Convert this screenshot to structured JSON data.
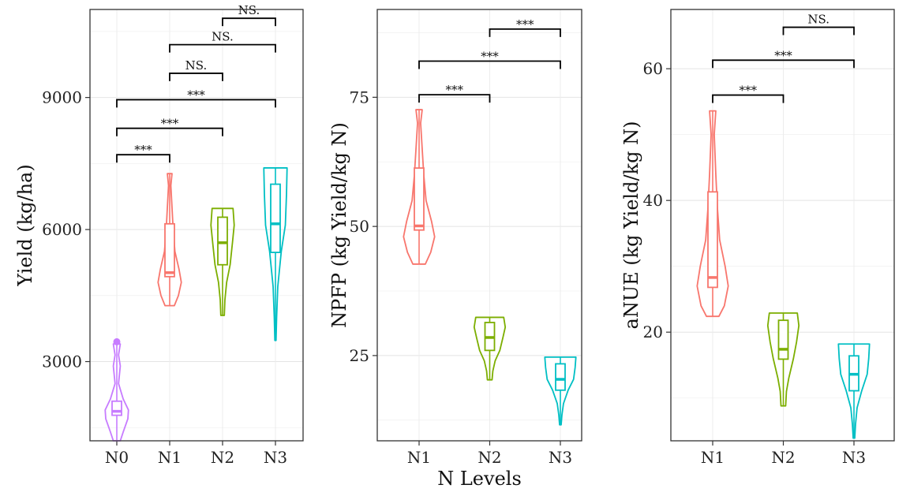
{
  "chart_data": [
    {
      "type": "violin",
      "ylabel": "Yield (kg/ha)",
      "ylim": [
        1200,
        11000
      ],
      "yticks": [
        3000,
        6000,
        9000
      ],
      "grid": true,
      "categories": [
        "N0",
        "N1",
        "N2",
        "N3"
      ],
      "colors": [
        "#C77CFF",
        "#F8766D",
        "#7CAE00",
        "#00BFC4"
      ],
      "series": [
        {
          "category": "N0",
          "min": 1200,
          "q1": 1780,
          "median": 1870,
          "q3": 2100,
          "max": 3450,
          "outliers": [
            3450
          ],
          "profile": [
            [
              1200,
              0.3
            ],
            [
              1400,
              0.55
            ],
            [
              1700,
              0.95
            ],
            [
              1900,
              1.0
            ],
            [
              2150,
              0.55
            ],
            [
              2500,
              0.15
            ],
            [
              2900,
              0.3
            ],
            [
              3150,
              0.15
            ],
            [
              3400,
              0.3
            ]
          ]
        },
        {
          "category": "N1",
          "min": 4270,
          "q1": 4930,
          "median": 5020,
          "q3": 6130,
          "max": 7270,
          "outliers": [],
          "profile": [
            [
              4270,
              0.4
            ],
            [
              4500,
              0.75
            ],
            [
              4800,
              1.0
            ],
            [
              5100,
              0.8
            ],
            [
              5500,
              0.45
            ],
            [
              6000,
              0.3
            ],
            [
              6500,
              0.2
            ],
            [
              7000,
              0.1
            ],
            [
              7270,
              0.2
            ]
          ]
        },
        {
          "category": "N2",
          "min": 4050,
          "q1": 5200,
          "median": 5700,
          "q3": 6280,
          "max": 6480,
          "outliers": [],
          "profile": [
            [
              4050,
              0.15
            ],
            [
              4400,
              0.2
            ],
            [
              4800,
              0.35
            ],
            [
              5200,
              0.65
            ],
            [
              5700,
              0.85
            ],
            [
              6100,
              1.0
            ],
            [
              6480,
              0.9
            ]
          ]
        },
        {
          "category": "N3",
          "min": 3480,
          "q1": 5480,
          "median": 6130,
          "q3": 7030,
          "max": 7400,
          "outliers": [],
          "profile": [
            [
              3480,
              0.05
            ],
            [
              4000,
              0.1
            ],
            [
              4700,
              0.2
            ],
            [
              5500,
              0.5
            ],
            [
              6100,
              0.85
            ],
            [
              6800,
              0.95
            ],
            [
              7400,
              1.0
            ]
          ]
        }
      ],
      "comparisons": [
        {
          "from": "N0",
          "to": "N1",
          "y": 7700,
          "label": "***"
        },
        {
          "from": "N0",
          "to": "N2",
          "y": 8300,
          "label": "***"
        },
        {
          "from": "N0",
          "to": "N3",
          "y": 8950,
          "label": "***"
        },
        {
          "from": "N1",
          "to": "N2",
          "y": 9550,
          "label": "NS."
        },
        {
          "from": "N1",
          "to": "N3",
          "y": 10200,
          "label": "NS."
        },
        {
          "from": "N2",
          "to": "N3",
          "y": 10800,
          "label": "NS."
        }
      ]
    },
    {
      "type": "violin",
      "ylabel": "NPFP (kg Yield/kg N)",
      "xlabel": "N Levels",
      "ylim": [
        8.5,
        92
      ],
      "yticks": [
        25,
        50,
        75
      ],
      "grid": true,
      "categories": [
        "N1",
        "N2",
        "N3"
      ],
      "colors": [
        "#F8766D",
        "#7CAE00",
        "#00BFC4"
      ],
      "series": [
        {
          "category": "N1",
          "min": 42.7,
          "q1": 49.3,
          "median": 50.1,
          "q3": 61.3,
          "max": 72.6,
          "outliers": [],
          "profile": [
            [
              42.7,
              0.4
            ],
            [
              45,
              0.75
            ],
            [
              48,
              1.0
            ],
            [
              51,
              0.8
            ],
            [
              55,
              0.45
            ],
            [
              60,
              0.3
            ],
            [
              65,
              0.2
            ],
            [
              70,
              0.1
            ],
            [
              72.6,
              0.2
            ]
          ]
        },
        {
          "category": "N2",
          "min": 20.3,
          "q1": 26.0,
          "median": 28.5,
          "q3": 31.4,
          "max": 32.4,
          "outliers": [],
          "profile": [
            [
              20.3,
              0.15
            ],
            [
              22,
              0.2
            ],
            [
              24,
              0.35
            ],
            [
              26,
              0.65
            ],
            [
              28.5,
              0.85
            ],
            [
              30.5,
              1.0
            ],
            [
              32.4,
              0.9
            ]
          ]
        },
        {
          "category": "N3",
          "min": 11.6,
          "q1": 18.3,
          "median": 20.4,
          "q3": 23.4,
          "max": 24.7,
          "outliers": [],
          "profile": [
            [
              11.6,
              0.05
            ],
            [
              13.5,
              0.1
            ],
            [
              15.7,
              0.2
            ],
            [
              18.3,
              0.5
            ],
            [
              20.4,
              0.85
            ],
            [
              22.7,
              0.95
            ],
            [
              24.7,
              1.0
            ]
          ]
        }
      ],
      "comparisons": [
        {
          "from": "N1",
          "to": "N2",
          "y": 75.5,
          "label": "***"
        },
        {
          "from": "N1",
          "to": "N3",
          "y": 82.0,
          "label": "***"
        },
        {
          "from": "N2",
          "to": "N3",
          "y": 88.2,
          "label": "***"
        }
      ]
    },
    {
      "type": "violin",
      "ylabel": "aNUE (kg Yield/kg N)",
      "ylim": [
        3.5,
        69
      ],
      "yticks": [
        20,
        40,
        60
      ],
      "grid": true,
      "categories": [
        "N1",
        "N2",
        "N3"
      ],
      "colors": [
        "#F8766D",
        "#7CAE00",
        "#00BFC4"
      ],
      "series": [
        {
          "category": "N1",
          "min": 22.4,
          "q1": 26.8,
          "median": 28.3,
          "q3": 41.3,
          "max": 53.6,
          "outliers": [],
          "profile": [
            [
              22.4,
              0.4
            ],
            [
              24,
              0.75
            ],
            [
              27,
              1.0
            ],
            [
              30,
              0.8
            ],
            [
              34,
              0.45
            ],
            [
              39,
              0.3
            ],
            [
              44,
              0.2
            ],
            [
              50,
              0.1
            ],
            [
              53.6,
              0.2
            ]
          ]
        },
        {
          "category": "N2",
          "min": 8.8,
          "q1": 15.9,
          "median": 17.4,
          "q3": 21.8,
          "max": 22.9,
          "outliers": [],
          "profile": [
            [
              8.8,
              0.15
            ],
            [
              11,
              0.2
            ],
            [
              13,
              0.35
            ],
            [
              16,
              0.65
            ],
            [
              18.5,
              0.85
            ],
            [
              21,
              1.0
            ],
            [
              22.9,
              0.9
            ]
          ]
        },
        {
          "category": "N3",
          "min": 3.9,
          "q1": 11.1,
          "median": 13.6,
          "q3": 16.4,
          "max": 18.2,
          "outliers": [],
          "profile": [
            [
              3.9,
              0.05
            ],
            [
              6,
              0.1
            ],
            [
              8.5,
              0.2
            ],
            [
              11.1,
              0.5
            ],
            [
              13.6,
              0.85
            ],
            [
              16,
              0.95
            ],
            [
              18.2,
              1.0
            ]
          ]
        }
      ],
      "comparisons": [
        {
          "from": "N1",
          "to": "N2",
          "y": 56.0,
          "label": "***"
        },
        {
          "from": "N1",
          "to": "N3",
          "y": 61.3,
          "label": "***"
        },
        {
          "from": "N2",
          "to": "N3",
          "y": 66.3,
          "label": "NS."
        }
      ]
    }
  ]
}
